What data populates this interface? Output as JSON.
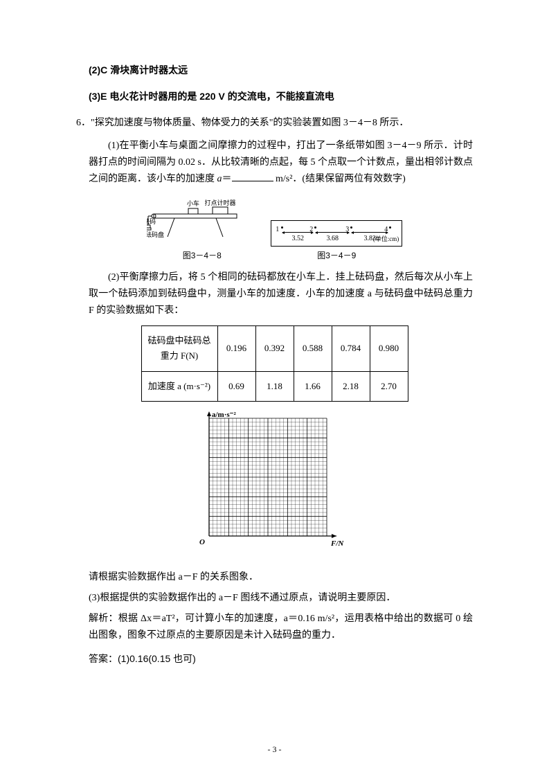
{
  "prev_answers": {
    "line2": "(2)C 滑块离计时器太远",
    "line3": "(3)E 电火花计时器用的是 220 V 的交流电，不能接直流电"
  },
  "q6": {
    "number": "6．",
    "intro": "\"探究加速度与物体质量、物体受力的关系\"的实验装置如图 3－4－8 所示．",
    "part1_a": "(1)在平衡小车与桌面之间摩擦力的过程中，打出了一条纸带如图 3－4－9 所示．计时器打点的时间间隔为 0.02 s．从比较清晰的点起，每 5 个点取一个计数点，量出相邻计数点之间的距离．该小车的加速度 ",
    "part1_var": "a",
    "part1_eq": "＝",
    "part1_unit": " m/s²．(结果保留两位有效数字)",
    "fig_left_labels": {
      "car": "小车",
      "timer": "打点计时器",
      "weight": "砝码",
      "pan": "砝码盘"
    },
    "fig_left_cap": "图3－4－8",
    "fig_right": {
      "measurements": [
        "3.52",
        "3.68",
        "3.83"
      ],
      "unit": "(单位:cm)",
      "cap": "图3－4－9"
    },
    "part2": "(2)平衡摩擦力后，将 5 个相同的砝码都放在小车上．挂上砝码盘，然后每次从小车上取一个砝码添加到砝码盘中，测量小车的加速度．小车的加速度 a 与砝码盘中砝码总重力 F 的实验数据如下表：",
    "table": {
      "row1_header": "砝码盘中砝码总重力 F(N)",
      "row1": [
        "0.196",
        "0.392",
        "0.588",
        "0.784",
        "0.980"
      ],
      "row2_header": "加速度 a (m·s⁻²)",
      "row2": [
        "0.69",
        "1.18",
        "1.66",
        "2.18",
        "2.70"
      ]
    },
    "grid": {
      "y_label": "a/m·s⁻²",
      "x_label": "F/N",
      "origin": "O",
      "size": 170,
      "cells": 30,
      "major": 5,
      "grid_color": "#000000",
      "bg": "#ffffff"
    },
    "part2b": "请根据实验数据作出 a－F 的关系图象．",
    "part3": "(3)根据提供的实验数据作出的 a－F 图线不通过原点，请说明主要原因．",
    "analysis": "解析：根据 Δx＝aT²，可计算小车的加速度，a＝0.16 m/s²，运用表格中给出的数据可 0 绘出图象，图象不过原点的主要原因是未计入砝码盘的重力．",
    "answer": "答案：(1)0.16(0.15 也可)"
  },
  "page_number": "- 3 -"
}
